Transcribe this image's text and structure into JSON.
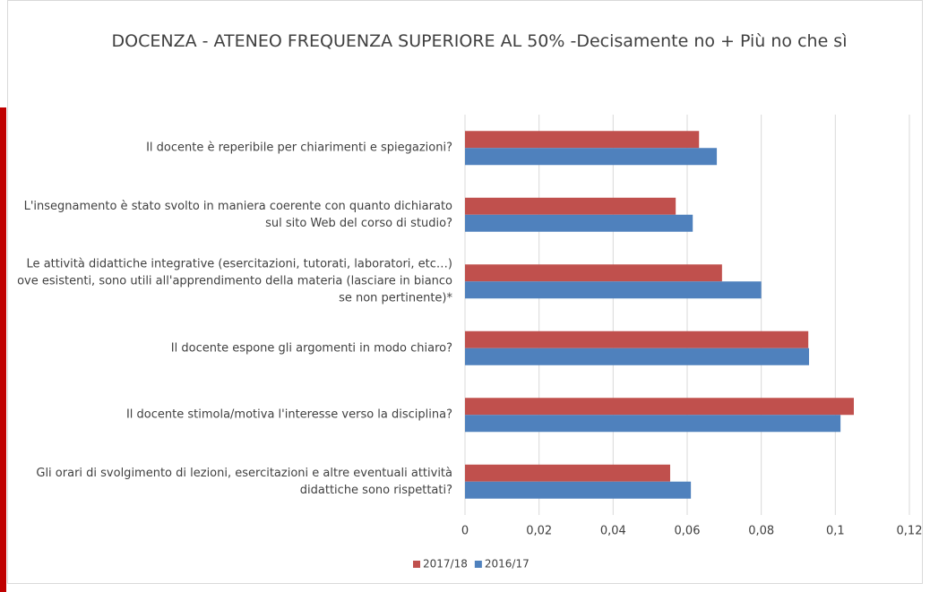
{
  "chart_data": {
    "type": "bar",
    "orientation": "horizontal",
    "title": "DOCENZA - ATENEO FREQUENZA SUPERIORE AL 50% -Decisamente no + Più no che sì",
    "categories": [
      "Il docente è reperibile per chiarimenti e spiegazioni?",
      "L'insegnamento è stato svolto in maniera coerente con quanto dichiarato sul sito Web del corso di studio?",
      "Le attività didattiche integrative (esercitazioni, tutorati, laboratori, etc…) ove esistenti, sono utili all'apprendimento della materia (lasciare in bianco se non pertinente)*",
      "Il docente espone gli argomenti in modo chiaro?",
      "Il docente stimola/motiva l'interesse verso la disciplina?",
      "Gli orari di svolgimento di lezioni, esercitazioni e altre eventuali attività didattiche sono rispettati?"
    ],
    "series": [
      {
        "name": "2017/18",
        "color": "#c0504d",
        "values": [
          0.0632,
          0.0569,
          0.0694,
          0.0927,
          0.105,
          0.0554
        ]
      },
      {
        "name": "2016/17",
        "color": "#4f81bd",
        "values": [
          0.068,
          0.0615,
          0.08,
          0.0929,
          0.1014,
          0.061
        ]
      }
    ],
    "xlim": [
      0,
      0.12
    ],
    "xticks": [
      0,
      {
        "value": 0.02,
        "label": "0,02"
      },
      {
        "value": 0.04,
        "label": "0,04"
      },
      {
        "value": 0.06,
        "label": "0,06"
      },
      {
        "value": 0.08,
        "label": "0,08"
      },
      {
        "value": 0.1,
        "label": "0,1"
      },
      {
        "value": 0.12,
        "label": "0,12"
      }
    ],
    "grid": true,
    "legend": "bottom"
  }
}
